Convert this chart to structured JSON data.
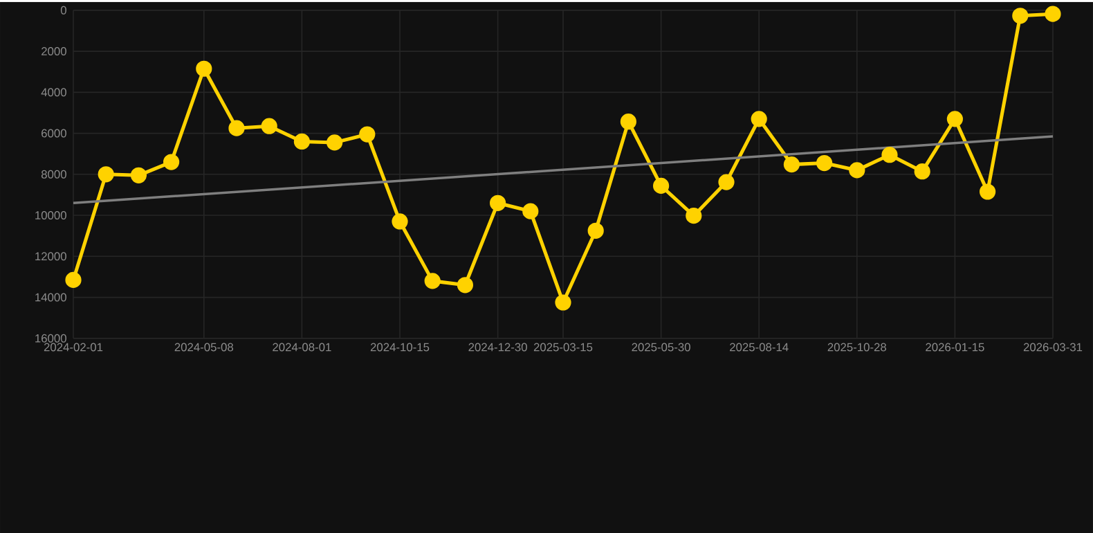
{
  "chart_data": {
    "type": "line",
    "categories": [
      "2024-02-01",
      null,
      null,
      null,
      "2024-05-08",
      null,
      null,
      "2024-08-01",
      null,
      null,
      "2024-10-15",
      null,
      null,
      "2024-12-30",
      null,
      "2025-03-15",
      null,
      null,
      "2025-05-30",
      null,
      null,
      "2025-08-14",
      null,
      null,
      "2025-10-28",
      null,
      null,
      "2026-01-15",
      null,
      null,
      "2026-03-31"
    ],
    "series": [
      {
        "color": "#ffd200",
        "values": [
          13150,
          8000,
          8050,
          7400,
          2850,
          5750,
          5650,
          6400,
          6450,
          6050,
          10300,
          13200,
          13400,
          9400,
          9800,
          14250,
          10750,
          5430,
          8560,
          10020,
          8380,
          5300,
          7520,
          7450,
          7800,
          7050,
          7860,
          5300,
          8850,
          270,
          180
        ]
      },
      {
        "type": "line",
        "marker": "none",
        "color": "#7f7f7f",
        "values": [
          9400,
          null,
          null,
          null,
          null,
          null,
          null,
          null,
          null,
          null,
          null,
          null,
          null,
          null,
          null,
          null,
          null,
          null,
          null,
          null,
          null,
          null,
          null,
          null,
          null,
          null,
          null,
          null,
          null,
          null,
          6150
        ]
      }
    ],
    "ylim": [
      16000,
      0
    ],
    "yticks": [
      0,
      2000,
      4000,
      6000,
      8000,
      10000,
      12000,
      14000,
      16000
    ],
    "grid": true,
    "marker": "circle"
  }
}
